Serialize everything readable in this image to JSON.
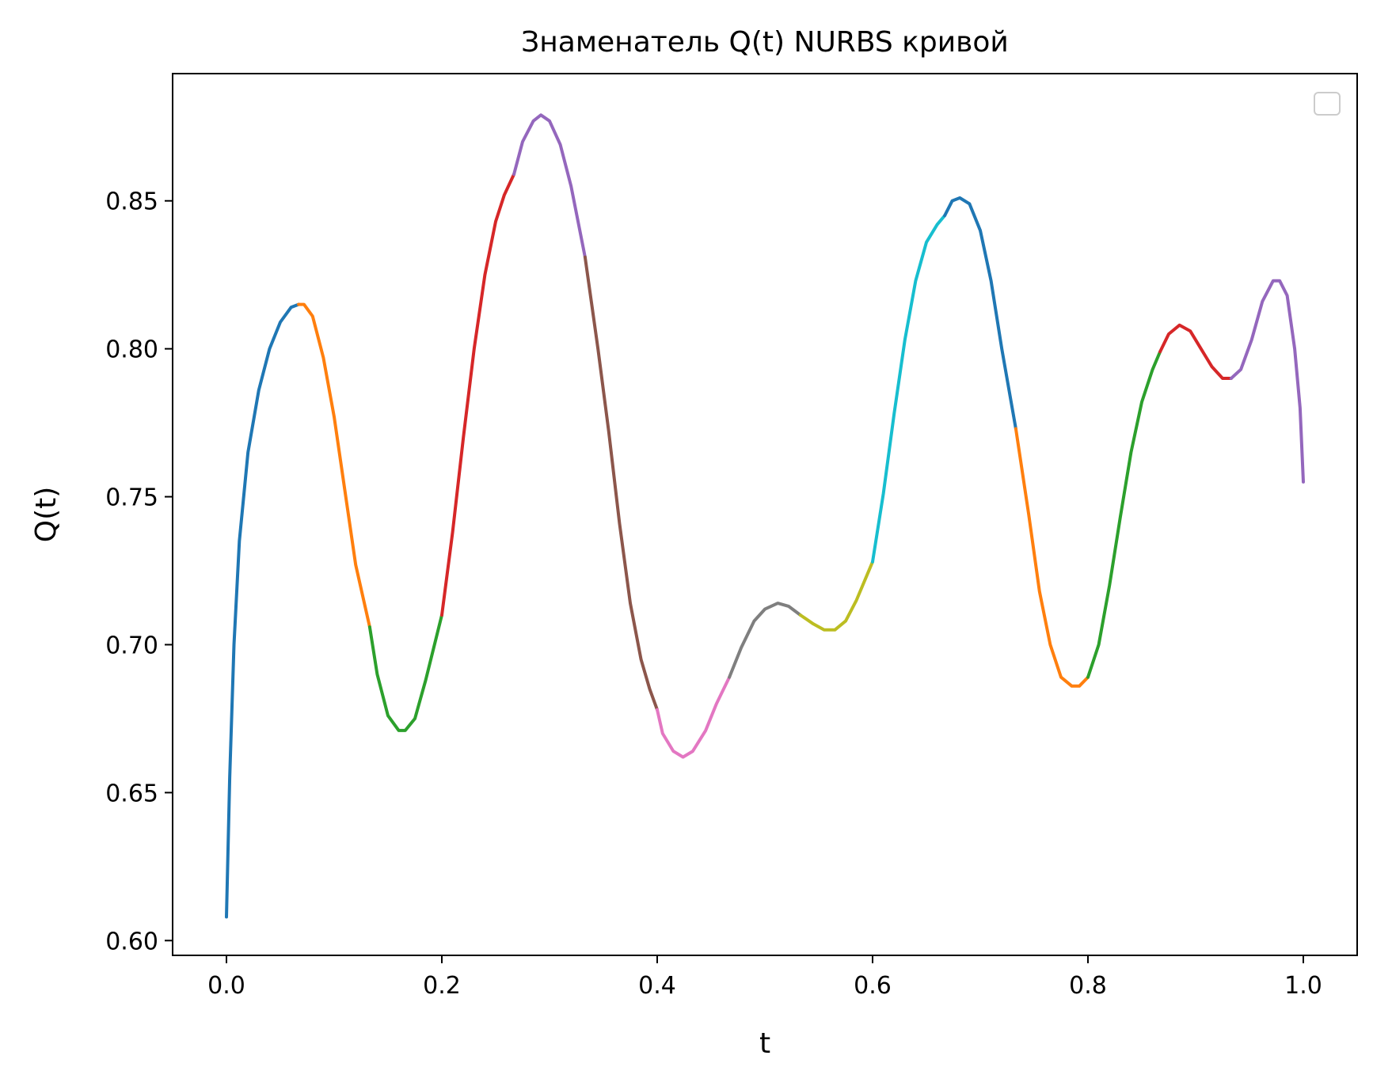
{
  "chart_data": {
    "type": "line",
    "title": "Знаменатель Q(t) NURBS кривой",
    "xlabel": "t",
    "ylabel": "Q(t)",
    "xlim": [
      -0.05,
      1.05
    ],
    "ylim": [
      0.595,
      0.893
    ],
    "xticks": [
      0.0,
      0.2,
      0.4,
      0.6,
      0.8,
      1.0
    ],
    "xtick_labels": [
      "0.0",
      "0.2",
      "0.4",
      "0.6",
      "0.8",
      "1.0"
    ],
    "yticks": [
      0.6,
      0.65,
      0.7,
      0.75,
      0.8,
      0.85
    ],
    "ytick_labels": [
      "0.60",
      "0.65",
      "0.70",
      "0.75",
      "0.80",
      "0.85"
    ],
    "grid": false,
    "legend": {
      "placement": "upper right",
      "entries": []
    },
    "segments": [
      {
        "color": "#1f77b4",
        "points": [
          [
            0.0,
            0.608
          ],
          [
            0.003,
            0.655
          ],
          [
            0.007,
            0.7
          ],
          [
            0.012,
            0.735
          ],
          [
            0.02,
            0.765
          ],
          [
            0.03,
            0.786
          ],
          [
            0.04,
            0.8
          ],
          [
            0.05,
            0.809
          ],
          [
            0.06,
            0.814
          ],
          [
            0.067,
            0.815
          ]
        ]
      },
      {
        "color": "#ff7f0e",
        "points": [
          [
            0.067,
            0.815
          ],
          [
            0.072,
            0.815
          ],
          [
            0.08,
            0.811
          ],
          [
            0.09,
            0.797
          ],
          [
            0.1,
            0.777
          ],
          [
            0.11,
            0.752
          ],
          [
            0.12,
            0.727
          ],
          [
            0.133,
            0.706
          ]
        ]
      },
      {
        "color": "#2ca02c",
        "points": [
          [
            0.133,
            0.706
          ],
          [
            0.14,
            0.69
          ],
          [
            0.15,
            0.676
          ],
          [
            0.16,
            0.671
          ],
          [
            0.166,
            0.671
          ],
          [
            0.175,
            0.675
          ],
          [
            0.185,
            0.688
          ],
          [
            0.2,
            0.71
          ]
        ]
      },
      {
        "color": "#d62728",
        "points": [
          [
            0.2,
            0.71
          ],
          [
            0.21,
            0.738
          ],
          [
            0.22,
            0.77
          ],
          [
            0.23,
            0.8
          ],
          [
            0.24,
            0.825
          ],
          [
            0.25,
            0.843
          ],
          [
            0.258,
            0.852
          ],
          [
            0.267,
            0.859
          ]
        ]
      },
      {
        "color": "#9467bd",
        "points": [
          [
            0.267,
            0.859
          ],
          [
            0.275,
            0.87
          ],
          [
            0.285,
            0.877
          ],
          [
            0.292,
            0.879
          ],
          [
            0.3,
            0.877
          ],
          [
            0.31,
            0.869
          ],
          [
            0.32,
            0.855
          ],
          [
            0.333,
            0.831
          ]
        ]
      },
      {
        "color": "#8c564b",
        "points": [
          [
            0.333,
            0.831
          ],
          [
            0.345,
            0.8
          ],
          [
            0.355,
            0.772
          ],
          [
            0.365,
            0.741
          ],
          [
            0.375,
            0.714
          ],
          [
            0.385,
            0.695
          ],
          [
            0.393,
            0.685
          ],
          [
            0.4,
            0.678
          ]
        ]
      },
      {
        "color": "#e377c2",
        "points": [
          [
            0.4,
            0.678
          ],
          [
            0.405,
            0.67
          ],
          [
            0.415,
            0.664
          ],
          [
            0.424,
            0.662
          ],
          [
            0.433,
            0.664
          ],
          [
            0.445,
            0.671
          ],
          [
            0.455,
            0.68
          ],
          [
            0.467,
            0.689
          ]
        ]
      },
      {
        "color": "#7f7f7f",
        "points": [
          [
            0.467,
            0.689
          ],
          [
            0.478,
            0.699
          ],
          [
            0.49,
            0.708
          ],
          [
            0.5,
            0.712
          ],
          [
            0.512,
            0.714
          ],
          [
            0.522,
            0.713
          ],
          [
            0.533,
            0.71
          ]
        ]
      },
      {
        "color": "#bcbd22",
        "points": [
          [
            0.533,
            0.71
          ],
          [
            0.545,
            0.707
          ],
          [
            0.555,
            0.705
          ],
          [
            0.565,
            0.705
          ],
          [
            0.575,
            0.708
          ],
          [
            0.585,
            0.715
          ],
          [
            0.6,
            0.728
          ]
        ]
      },
      {
        "color": "#17becf",
        "points": [
          [
            0.6,
            0.728
          ],
          [
            0.61,
            0.751
          ],
          [
            0.62,
            0.778
          ],
          [
            0.63,
            0.803
          ],
          [
            0.64,
            0.823
          ],
          [
            0.65,
            0.836
          ],
          [
            0.66,
            0.842
          ],
          [
            0.667,
            0.845
          ]
        ]
      },
      {
        "color": "#1f77b4",
        "points": [
          [
            0.667,
            0.845
          ],
          [
            0.674,
            0.85
          ],
          [
            0.681,
            0.851
          ],
          [
            0.69,
            0.849
          ],
          [
            0.7,
            0.84
          ],
          [
            0.71,
            0.823
          ],
          [
            0.72,
            0.8
          ],
          [
            0.733,
            0.773
          ]
        ]
      },
      {
        "color": "#ff7f0e",
        "points": [
          [
            0.733,
            0.773
          ],
          [
            0.745,
            0.744
          ],
          [
            0.755,
            0.718
          ],
          [
            0.765,
            0.7
          ],
          [
            0.775,
            0.689
          ],
          [
            0.785,
            0.686
          ],
          [
            0.792,
            0.686
          ],
          [
            0.8,
            0.689
          ]
        ]
      },
      {
        "color": "#2ca02c",
        "points": [
          [
            0.8,
            0.689
          ],
          [
            0.81,
            0.7
          ],
          [
            0.82,
            0.72
          ],
          [
            0.83,
            0.743
          ],
          [
            0.84,
            0.765
          ],
          [
            0.85,
            0.782
          ],
          [
            0.86,
            0.793
          ],
          [
            0.867,
            0.799
          ]
        ]
      },
      {
        "color": "#d62728",
        "points": [
          [
            0.867,
            0.799
          ],
          [
            0.875,
            0.805
          ],
          [
            0.885,
            0.808
          ],
          [
            0.895,
            0.806
          ],
          [
            0.905,
            0.8
          ],
          [
            0.915,
            0.794
          ],
          [
            0.925,
            0.79
          ],
          [
            0.933,
            0.79
          ]
        ]
      },
      {
        "color": "#9467bd",
        "points": [
          [
            0.933,
            0.79
          ],
          [
            0.942,
            0.793
          ],
          [
            0.952,
            0.803
          ],
          [
            0.962,
            0.816
          ],
          [
            0.972,
            0.823
          ],
          [
            0.978,
            0.823
          ],
          [
            0.985,
            0.818
          ],
          [
            0.992,
            0.8
          ],
          [
            0.997,
            0.78
          ],
          [
            1.0,
            0.755
          ]
        ]
      }
    ]
  }
}
